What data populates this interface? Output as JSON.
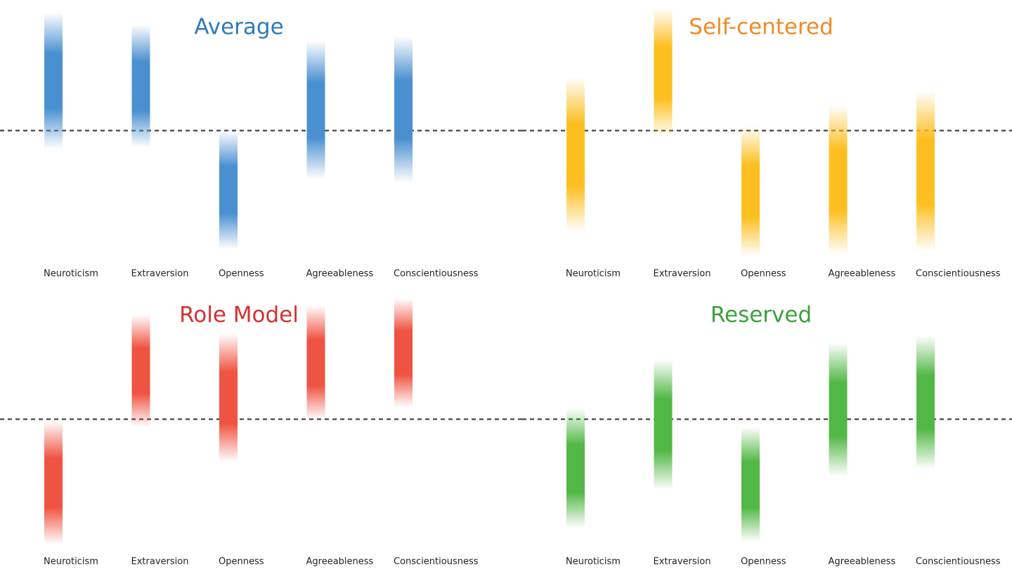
{
  "chart_data": [
    {
      "type": "range",
      "title": "Average",
      "title_color": "#2e7ab8",
      "color": "#4a90d0",
      "categories": [
        "Neuroticism",
        "Extraversion",
        "Openness",
        "Agreeableness",
        "Conscientiousness"
      ],
      "low": [
        -0.26,
        -0.24,
        -1.69,
        -0.69,
        -0.74
      ],
      "high": [
        1.68,
        1.51,
        0.0,
        1.28,
        1.34
      ],
      "baseline": 0,
      "ylim": [
        -1.8,
        1.8
      ]
    },
    {
      "type": "range",
      "title": "Self-centered",
      "title_color": "#f08a24",
      "color": "#fdbf1f",
      "categories": [
        "Neuroticism",
        "Extraversion",
        "Openness",
        "Agreeableness",
        "Conscientiousness"
      ],
      "low": [
        -1.44,
        -0.09,
        -1.79,
        -1.76,
        -1.72
      ],
      "high": [
        0.76,
        1.74,
        0.06,
        0.36,
        0.56
      ],
      "baseline": 0,
      "ylim": [
        -1.8,
        1.8
      ]
    },
    {
      "type": "range",
      "title": "Role Model",
      "title_color": "#d43030",
      "color": "#ef5341",
      "categories": [
        "Neuroticism",
        "Extraversion",
        "Openness",
        "Agreeableness",
        "Conscientiousness"
      ],
      "low": [
        -1.78,
        -0.11,
        -0.61,
        -0.01,
        0.17
      ],
      "high": [
        -0.03,
        1.49,
        1.22,
        1.62,
        1.72
      ],
      "baseline": 0,
      "ylim": [
        -1.8,
        1.8
      ]
    },
    {
      "type": "range",
      "title": "Reserved",
      "title_color": "#3ca03c",
      "color": "#52b845",
      "categories": [
        "Neuroticism",
        "Extraversion",
        "Openness",
        "Agreeableness",
        "Conscientiousness"
      ],
      "low": [
        -1.55,
        -1.01,
        -1.75,
        -0.81,
        -0.71
      ],
      "high": [
        0.15,
        0.85,
        -0.11,
        1.09,
        1.19
      ],
      "baseline": 0,
      "ylim": [
        -1.8,
        1.8
      ]
    }
  ]
}
